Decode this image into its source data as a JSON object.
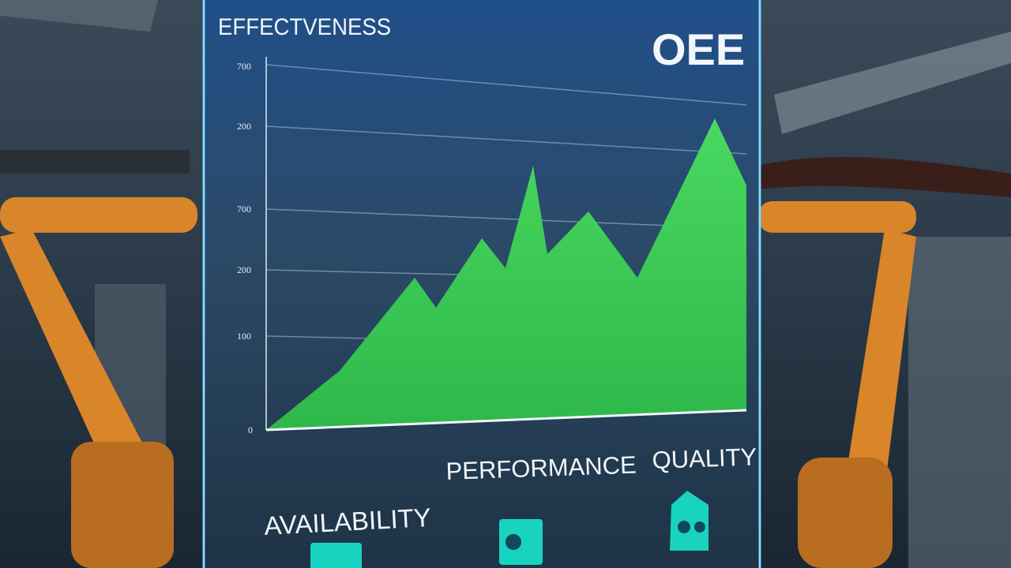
{
  "panel": {
    "title": "EFFECTVENESS",
    "badge": "OEE",
    "axis_labels": [
      "700",
      "200",
      "700",
      "200",
      "100",
      "0"
    ],
    "metrics": [
      "AVAILABILITY",
      "PERFORMANCE",
      "QUALITY"
    ]
  }
}
